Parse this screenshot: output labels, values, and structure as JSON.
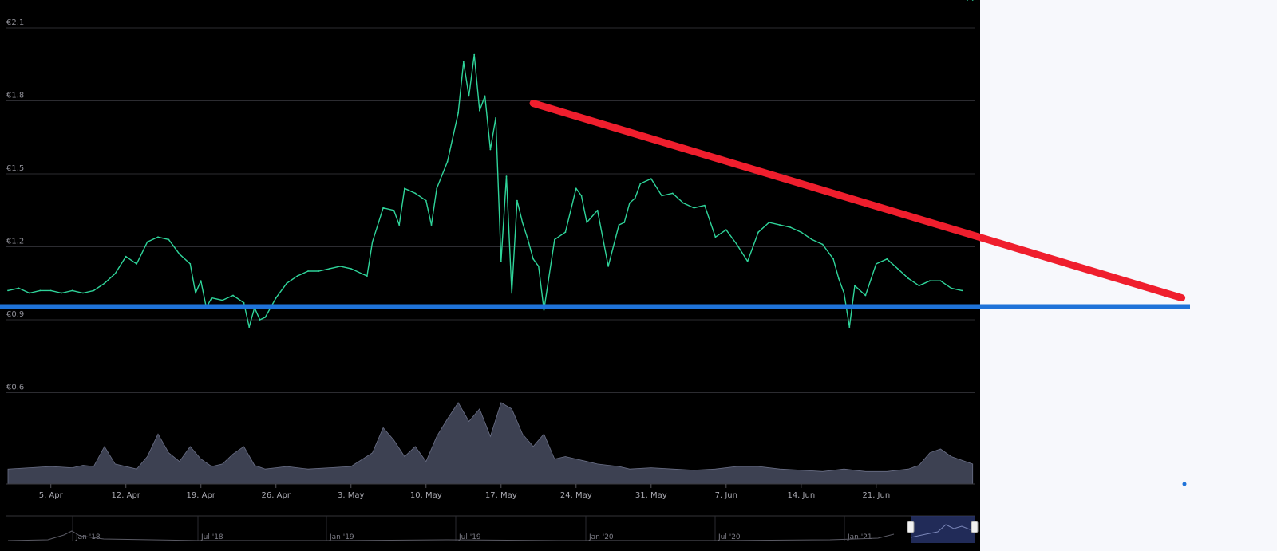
{
  "chart_data": {
    "type": "line",
    "currency": "€",
    "y_axis": {
      "ticks": [
        "€2.1",
        "€1.8",
        "€1.5",
        "€1.2",
        "€0.9",
        "€0.6"
      ],
      "tick_values": [
        2.1,
        1.8,
        1.5,
        1.2,
        0.9,
        0.6
      ],
      "grid": true
    },
    "x_axis": {
      "ticks": [
        "5. Apr",
        "12. Apr",
        "19. Apr",
        "26. Apr",
        "3. May",
        "10. May",
        "17. May",
        "24. May",
        "31. May",
        "7. Jun",
        "14. Jun",
        "21. Jun"
      ]
    },
    "series": [
      {
        "kind": "price",
        "color": "#2fd49a",
        "days_from_apr1": [
          0,
          1,
          2,
          3,
          4,
          5,
          6,
          7,
          8,
          9,
          10,
          11,
          12,
          13,
          14,
          15,
          16,
          17,
          17.5,
          18,
          18.5,
          19,
          20,
          21,
          22,
          22.5,
          23,
          23.5,
          24,
          25,
          26,
          27,
          28,
          29,
          30,
          31,
          32,
          33,
          33.5,
          34,
          35,
          36,
          36.5,
          37,
          38,
          39,
          39.5,
          40,
          41,
          42,
          42.5,
          43,
          43.5,
          44,
          44.5,
          45,
          45.5,
          46,
          46.5,
          47,
          47.5,
          48,
          48.5,
          49,
          49.5,
          50,
          51,
          52,
          53,
          53.5,
          54,
          55,
          56,
          57,
          57.5,
          58,
          58.5,
          59,
          60,
          61,
          62,
          63,
          64,
          65,
          66,
          67,
          68,
          69,
          70,
          71,
          72,
          73,
          74,
          75,
          76,
          77,
          77.5,
          78,
          78.5,
          79,
          80,
          81,
          82,
          83,
          84,
          85,
          86,
          87,
          88,
          89,
          89.5,
          90
        ],
        "values": [
          1.02,
          1.03,
          1.01,
          1.02,
          1.02,
          1.01,
          1.02,
          1.01,
          1.02,
          1.05,
          1.09,
          1.16,
          1.13,
          1.22,
          1.24,
          1.23,
          1.17,
          1.13,
          1.01,
          1.06,
          0.95,
          0.99,
          0.98,
          1.0,
          0.97,
          0.87,
          0.95,
          0.9,
          0.91,
          0.99,
          1.05,
          1.08,
          1.1,
          1.1,
          1.11,
          1.12,
          1.11,
          1.09,
          1.08,
          1.22,
          1.36,
          1.35,
          1.29,
          1.44,
          1.42,
          1.39,
          1.29,
          1.44,
          1.55,
          1.75,
          1.96,
          1.82,
          1.99,
          1.76,
          1.82,
          1.6,
          1.73,
          1.14,
          1.49,
          1.01,
          1.39,
          1.3,
          1.23,
          1.15,
          1.12,
          0.94,
          1.23,
          1.26,
          1.44,
          1.41,
          1.3,
          1.35,
          1.12,
          1.29,
          1.3,
          1.38,
          1.4,
          1.46,
          1.48,
          1.41,
          1.42,
          1.38,
          1.36,
          1.37,
          1.24,
          1.27,
          1.21,
          1.14,
          1.26,
          1.3,
          1.29,
          1.28,
          1.26,
          1.23,
          1.21,
          1.15,
          1.07,
          1.01,
          0.87,
          1.04,
          1.0,
          1.13,
          1.15,
          1.11,
          1.07,
          1.04,
          1.06,
          1.06,
          1.03,
          1.02
        ]
      },
      {
        "kind": "volume",
        "color": "#3d4152",
        "days_from_apr1": [
          0,
          2,
          4,
          6,
          7,
          8,
          9,
          10,
          12,
          13,
          14,
          15,
          16,
          17,
          18,
          19,
          20,
          21,
          22,
          23,
          24,
          25,
          26,
          28,
          30,
          32,
          34,
          35,
          36,
          37,
          38,
          39,
          40,
          41,
          42,
          43,
          44,
          45,
          46,
          47,
          48,
          49,
          50,
          51,
          52,
          53,
          54,
          55,
          56,
          57,
          58,
          60,
          62,
          64,
          66,
          68,
          70,
          72,
          74,
          76,
          78,
          80,
          82,
          84,
          85,
          86,
          87,
          88,
          90
        ],
        "values": [
          12,
          13,
          14,
          13,
          15,
          14,
          30,
          16,
          12,
          22,
          40,
          25,
          18,
          30,
          20,
          14,
          16,
          24,
          30,
          15,
          12,
          13,
          14,
          12,
          13,
          14,
          25,
          45,
          35,
          22,
          30,
          18,
          38,
          52,
          65,
          50,
          60,
          38,
          65,
          60,
          40,
          30,
          40,
          20,
          22,
          20,
          18,
          16,
          15,
          14,
          12,
          13,
          12,
          11,
          12,
          14,
          14,
          12,
          11,
          10,
          12,
          10,
          10,
          12,
          15,
          25,
          28,
          22,
          16
        ]
      }
    ],
    "annotations": [
      {
        "kind": "trendline",
        "color": "#ef1e2d",
        "from": {
          "day": 49,
          "value": 1.79
        },
        "to": {
          "day": 109.5,
          "value": 0.99
        }
      },
      {
        "kind": "support",
        "color": "#1f73d9",
        "value": 0.954
      }
    ],
    "navigator": {
      "ticks": [
        "Jan '18",
        "Jul '18",
        "Jan '19",
        "Jul '19",
        "Jan '20",
        "Jul '20",
        "Jan '21"
      ],
      "selection_color": "#2c3a75"
    }
  }
}
